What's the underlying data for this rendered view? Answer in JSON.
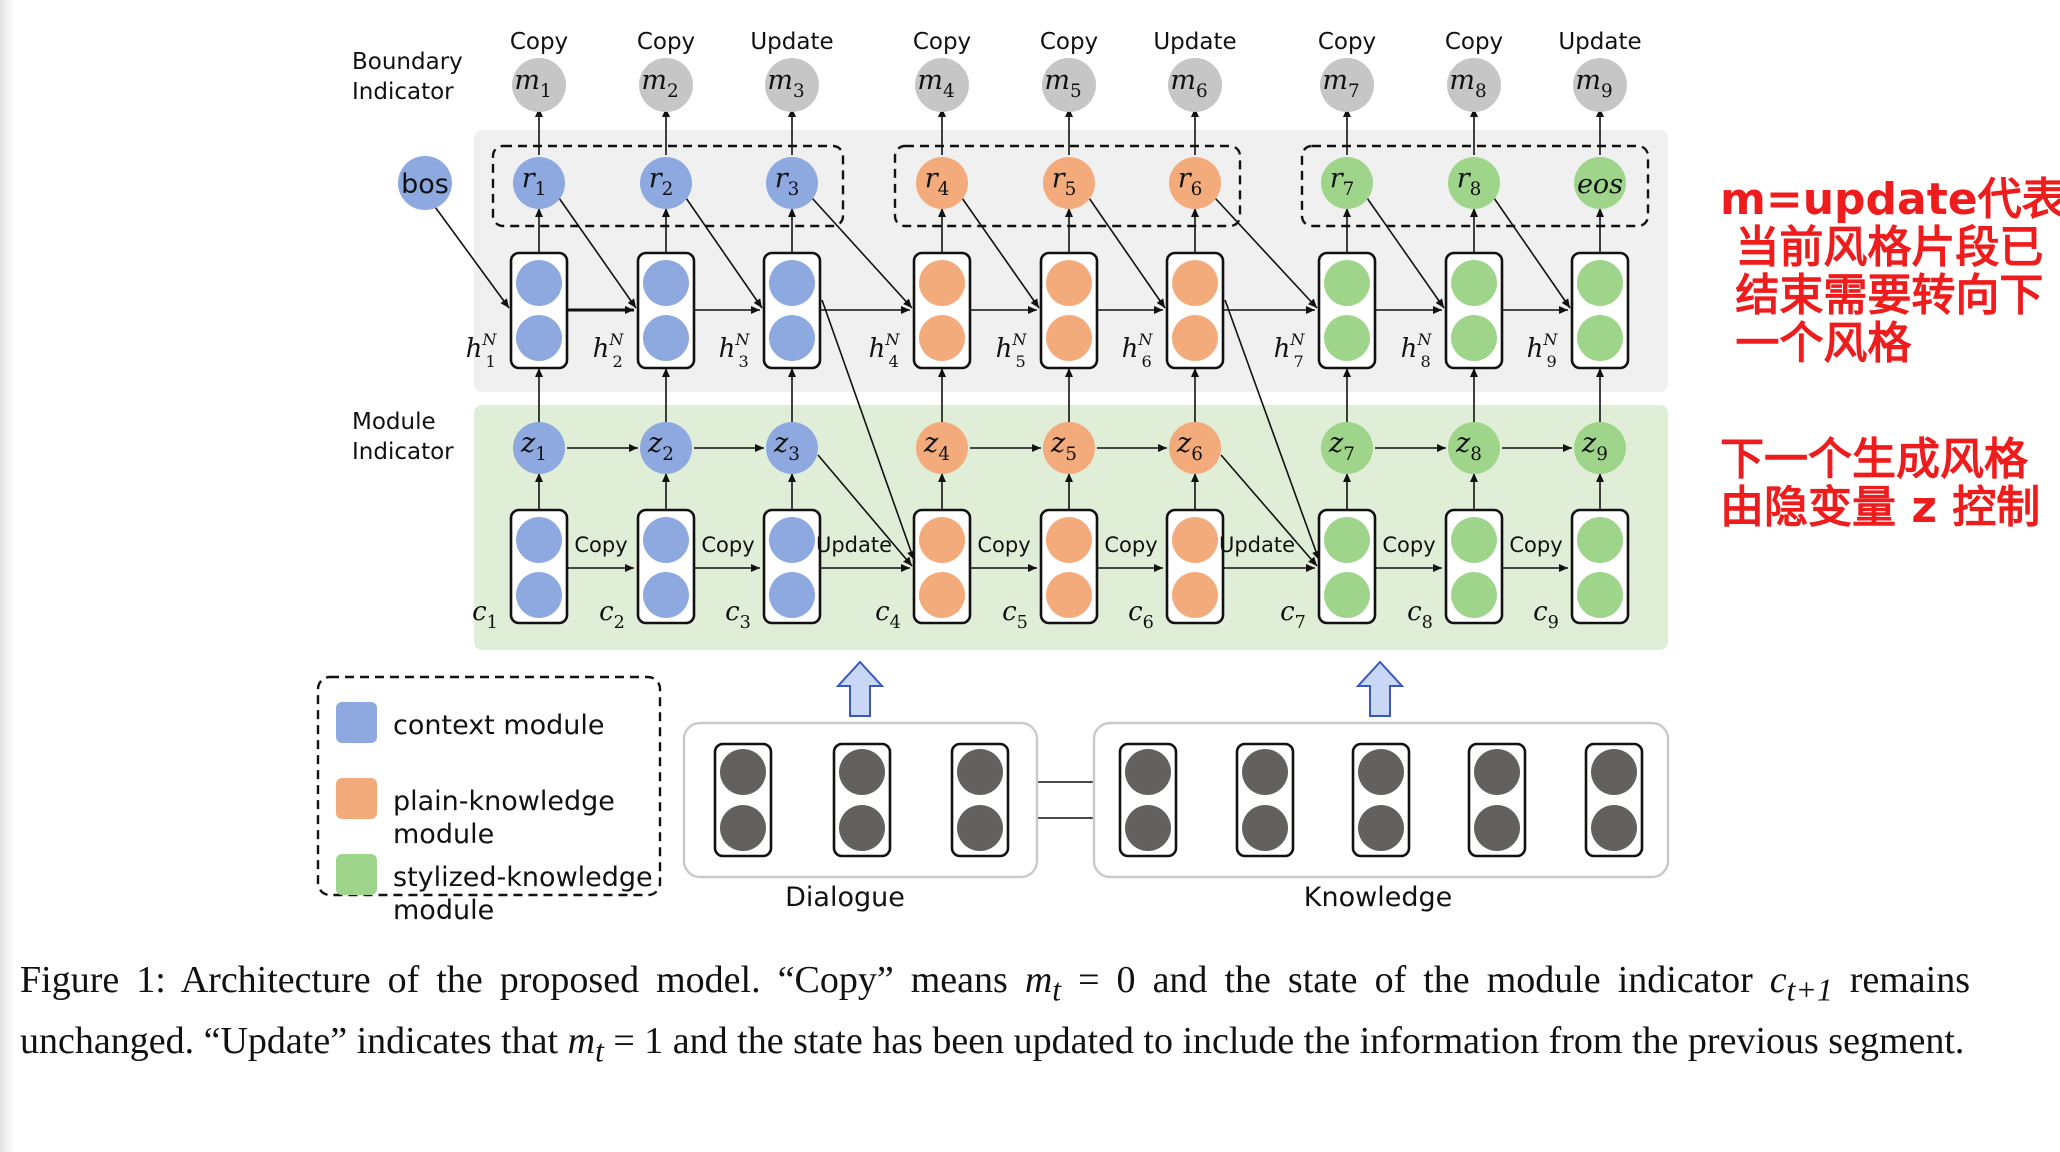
{
  "diagram": {
    "boundary_label_1": "Boundary",
    "boundary_label_2": "Indicator",
    "module_label_1": "Module",
    "module_label_2": "Indicator",
    "bos": "bos",
    "eos": "eos",
    "m_labels": [
      "Copy",
      "Copy",
      "Update",
      "Copy",
      "Copy",
      "Update",
      "Copy",
      "Copy",
      "Update"
    ],
    "c_labels": [
      "Copy",
      "Copy",
      "Update",
      "Copy",
      "Copy",
      "Update",
      "Copy",
      "Copy"
    ],
    "m_nodes": [
      "m",
      "m",
      "m",
      "m",
      "m",
      "m",
      "m",
      "m",
      "m"
    ],
    "r_nodes": [
      "r",
      "r",
      "r",
      "r",
      "r",
      "r",
      "r",
      "r"
    ],
    "z_nodes": [
      "z",
      "z",
      "z",
      "z",
      "z",
      "z",
      "z",
      "z",
      "z"
    ],
    "h_nodes": [
      "h",
      "h",
      "h",
      "h",
      "h",
      "h",
      "h",
      "h",
      "h"
    ],
    "c_nodes": [
      "c",
      "c",
      "c",
      "c",
      "c",
      "c",
      "c",
      "c",
      "c"
    ],
    "subscripts": [
      "1",
      "2",
      "3",
      "4",
      "5",
      "6",
      "7",
      "8",
      "9"
    ],
    "h_superscript": "N",
    "legend": [
      {
        "label_1": "context module",
        "label_2": "",
        "color": "#8ea9e0"
      },
      {
        "label_1": "plain-knowledge",
        "label_2": "module",
        "color": "#f4ab7c"
      },
      {
        "label_1": "stylized-knowledge",
        "label_2": "module",
        "color": "#9fd58a"
      }
    ],
    "encoder_dialogue": "Dialogue",
    "encoder_knowledge": "Knowledge"
  },
  "colors": {
    "context": "#8ea9e0",
    "plain": "#f4ab7c",
    "stylized": "#9fd58a",
    "gray_node": "#c6c6c6",
    "encoder_node": "#636060",
    "upper_panel": "#f0f0f0",
    "lower_panel": "#e1eed7",
    "annotation": "#ee1c1c",
    "up_arrow": "#c8d7f5"
  },
  "annotations": {
    "note_1": "m=update代表\n 当前风格片段已\n 结束需要转向下\n 一个风格",
    "note_2": "下一个生成风格\n由隐变量 z 控制"
  },
  "caption": {
    "text": "Figure 1: Architecture of the proposed model. “Copy” means m_t = 0 and the state of the module indicator c_{t+1} remains unchanged. “Update” indicates that m_t = 1 and the state has been updated to include the information from the previous segment.",
    "line_1": "Figure 1: Architecture of the proposed model. “Copy” means ",
    "m_var": "m",
    "t_sub": "t",
    "line_1b": " = 0 and the state of the module indicator ",
    "c_var": "c",
    "c_sub": "t+1",
    "line_2": " remains unchanged. “Update” indicates that ",
    "line_2b": " = 1 and the state has been updated to include the information from the previous segment."
  }
}
